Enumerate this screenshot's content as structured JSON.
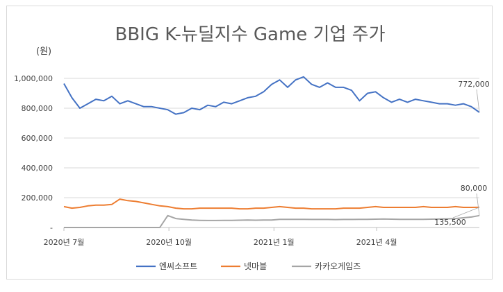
{
  "chart_data": {
    "type": "line",
    "title": "BBIG K-뉴딜지수 Game 기업 주가",
    "ylabel": "(원)",
    "xlabel": "",
    "ylim": [
      0,
      1000000
    ],
    "yticks": [
      "-",
      "200,000",
      "400,000",
      "600,000",
      "800,000",
      "1,000,000"
    ],
    "xticks": [
      "2020년 7월",
      "2020년 10월",
      "2021년 1월",
      "2021년 4월"
    ],
    "legend_position": "bottom",
    "grid": "horizontal",
    "x_dates": [
      "2020-07-01",
      "2020-07-08",
      "2020-07-15",
      "2020-07-22",
      "2020-07-29",
      "2020-08-05",
      "2020-08-12",
      "2020-08-19",
      "2020-08-26",
      "2020-09-02",
      "2020-09-09",
      "2020-09-16",
      "2020-09-23",
      "2020-09-30",
      "2020-10-07",
      "2020-10-14",
      "2020-10-21",
      "2020-10-28",
      "2020-11-04",
      "2020-11-11",
      "2020-11-18",
      "2020-11-25",
      "2020-12-02",
      "2020-12-09",
      "2020-12-16",
      "2020-12-23",
      "2020-12-30",
      "2021-01-06",
      "2021-01-13",
      "2021-01-20",
      "2021-01-27",
      "2021-02-03",
      "2021-02-10",
      "2021-02-17",
      "2021-02-24",
      "2021-03-03",
      "2021-03-10",
      "2021-03-17",
      "2021-03-24",
      "2021-03-31",
      "2021-04-07",
      "2021-04-14",
      "2021-04-21",
      "2021-04-28",
      "2021-05-05",
      "2021-05-12",
      "2021-05-19",
      "2021-05-26",
      "2021-06-02",
      "2021-06-09",
      "2021-06-16",
      "2021-06-23",
      "2021-06-30"
    ],
    "series": [
      {
        "name": "엔씨소프트",
        "color": "#4472c4",
        "values": [
          965000,
          870000,
          800000,
          830000,
          860000,
          850000,
          880000,
          830000,
          850000,
          830000,
          810000,
          810000,
          800000,
          790000,
          760000,
          770000,
          800000,
          790000,
          820000,
          810000,
          840000,
          830000,
          850000,
          870000,
          880000,
          910000,
          960000,
          990000,
          940000,
          990000,
          1010000,
          960000,
          940000,
          970000,
          940000,
          940000,
          920000,
          850000,
          900000,
          910000,
          870000,
          840000,
          860000,
          840000,
          860000,
          850000,
          840000,
          830000,
          830000,
          820000,
          830000,
          810000,
          772000
        ],
        "end_label": "772,000"
      },
      {
        "name": "넷마블",
        "color": "#ed7d31",
        "values": [
          140000,
          130000,
          135000,
          145000,
          150000,
          150000,
          155000,
          190000,
          180000,
          175000,
          165000,
          155000,
          145000,
          140000,
          130000,
          125000,
          125000,
          130000,
          130000,
          130000,
          130000,
          130000,
          125000,
          125000,
          130000,
          130000,
          135000,
          140000,
          135000,
          130000,
          130000,
          125000,
          125000,
          125000,
          125000,
          130000,
          130000,
          130000,
          135000,
          140000,
          135000,
          135000,
          135000,
          135000,
          135000,
          140000,
          135000,
          135000,
          135000,
          140000,
          135000,
          135000,
          135500
        ],
        "end_label": "135,500"
      },
      {
        "name": "카카오게임즈",
        "color": "#a5a5a5",
        "values": [
          0,
          0,
          0,
          0,
          0,
          0,
          0,
          0,
          0,
          0,
          0,
          0,
          0,
          80000,
          60000,
          55000,
          50000,
          48000,
          47000,
          47000,
          48000,
          48000,
          49000,
          50000,
          49000,
          50000,
          50000,
          55000,
          55000,
          55000,
          55000,
          54000,
          54000,
          54000,
          53000,
          54000,
          54000,
          55000,
          55000,
          56000,
          57000,
          56000,
          55000,
          55000,
          55000,
          55000,
          56000,
          57000,
          58000,
          60000,
          65000,
          70000,
          80000
        ],
        "end_label": "80,000"
      }
    ]
  }
}
